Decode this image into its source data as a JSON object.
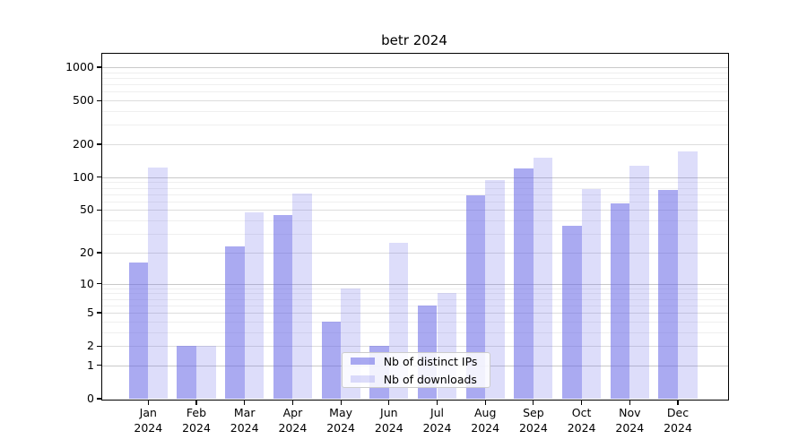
{
  "chart_data": {
    "type": "bar",
    "title": "betr 2024",
    "year": "2024",
    "months": [
      "Jan",
      "Feb",
      "Mar",
      "Apr",
      "May",
      "Jun",
      "Jul",
      "Aug",
      "Sep",
      "Oct",
      "Nov",
      "Dec"
    ],
    "categories": [
      "Jan 2024",
      "Feb 2024",
      "Mar 2024",
      "Apr 2024",
      "May 2024",
      "Jun 2024",
      "Jul 2024",
      "Aug 2024",
      "Sep 2024",
      "Oct 2024",
      "Nov 2024",
      "Dec 2024"
    ],
    "series": [
      {
        "name": "Nb of distinct IPs",
        "color": "#6464e6",
        "alpha": 0.55,
        "values": [
          16,
          2,
          23,
          45,
          4,
          2,
          6,
          68,
          120,
          36,
          58,
          76
        ]
      },
      {
        "name": "Nb of downloads",
        "color": "#6464e6",
        "alpha": 0.22,
        "values": [
          122,
          2,
          48,
          71,
          9,
          25,
          8,
          95,
          150,
          78,
          128,
          172
        ]
      }
    ],
    "yscale": "log1p",
    "yticks": [
      0,
      1,
      2,
      5,
      10,
      20,
      50,
      100,
      200,
      500,
      1000
    ],
    "ytick_labels": [
      "0",
      "1",
      "2",
      "5",
      "10",
      "20",
      "50",
      "100",
      "200",
      "500",
      "1000"
    ],
    "ylim": [
      0,
      1300
    ],
    "xlabel": "",
    "ylabel": "",
    "grid": true,
    "legend_position": "lower center inside",
    "colors": {
      "axis": "#000000",
      "grid_decade": "#c9c9c9",
      "grid_labeled": "#dddddd",
      "grid_minor": "#efefef",
      "bar_ips_on_white": "#aaaaf2",
      "bar_downloads_on_white": "#dedefb"
    }
  }
}
